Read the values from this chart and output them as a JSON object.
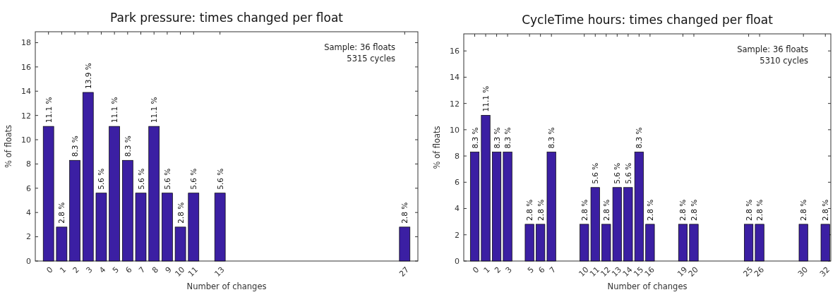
{
  "chart_data": [
    {
      "type": "bar",
      "title": "Park pressure: times changed per float",
      "xlabel": "Number of changes",
      "ylabel": "% of floats",
      "color": "#3b1fa3",
      "x": [
        0,
        1,
        2,
        3,
        4,
        5,
        6,
        7,
        8,
        9,
        10,
        11,
        13,
        27
      ],
      "values": [
        11.1,
        2.8,
        8.3,
        13.9,
        5.6,
        11.1,
        8.3,
        5.6,
        11.1,
        5.6,
        2.8,
        5.6,
        5.6,
        2.8
      ],
      "value_labels": [
        "11.1 %",
        "2.8 %",
        "8.3 %",
        "13.9 %",
        "5.6 %",
        "11.1 %",
        "8.3 %",
        "5.6 %",
        "11.1 %",
        "5.6 %",
        "2.8 %",
        "5.6 %",
        "5.6 %",
        "2.8 %"
      ],
      "xlim": [
        -1,
        28
      ],
      "ylim": [
        0,
        18.9
      ],
      "xticks": [
        0,
        1,
        2,
        3,
        4,
        5,
        6,
        7,
        8,
        9,
        10,
        11,
        13,
        27
      ],
      "yticks": [
        0,
        2,
        4,
        6,
        8,
        10,
        12,
        14,
        16,
        18
      ],
      "annotations": [
        "Sample: 36 floats",
        "5315 cycles"
      ]
    },
    {
      "type": "bar",
      "title": "CycleTime hours: times changed per float",
      "xlabel": "Number of changes",
      "ylabel": "% of floats",
      "color": "#3b1fa3",
      "x": [
        0,
        1,
        2,
        3,
        5,
        6,
        7,
        10,
        11,
        12,
        13,
        14,
        15,
        16,
        19,
        20,
        25,
        26,
        30,
        32
      ],
      "values": [
        8.3,
        11.1,
        8.3,
        8.3,
        2.8,
        2.8,
        8.3,
        2.8,
        5.6,
        2.8,
        5.6,
        5.6,
        8.3,
        2.8,
        2.8,
        2.8,
        2.8,
        2.8,
        2.8,
        2.8
      ],
      "value_labels": [
        "8.3 %",
        "11.1 %",
        "8.3 %",
        "8.3 %",
        "2.8 %",
        "2.8 %",
        "8.3 %",
        "2.8 %",
        "5.6 %",
        "2.8 %",
        "5.6 %",
        "5.6 %",
        "8.3 %",
        "2.8 %",
        "2.8 %",
        "2.8 %",
        "2.8 %",
        "2.8 %",
        "2.8 %",
        "2.8 %"
      ],
      "xlim": [
        -1,
        32.5
      ],
      "ylim": [
        0,
        17.3
      ],
      "xticks": [
        0,
        1,
        2,
        3,
        5,
        6,
        7,
        10,
        11,
        12,
        13,
        14,
        15,
        16,
        19,
        20,
        25,
        26,
        30,
        32
      ],
      "yticks": [
        0,
        2,
        4,
        6,
        8,
        10,
        12,
        14,
        16
      ],
      "annotations": [
        "Sample: 36 floats",
        "5310 cycles"
      ]
    }
  ]
}
